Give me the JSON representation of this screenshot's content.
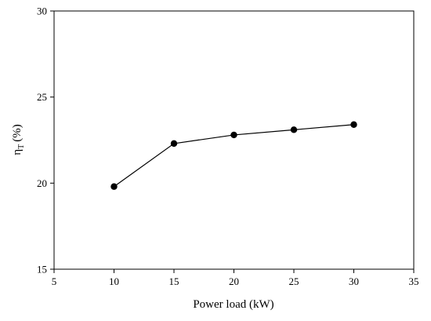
{
  "chart_data": {
    "type": "line",
    "xlabel": "Power load (kW)",
    "ylabel_main": "η",
    "ylabel_sub": "T",
    "ylabel_unit": "(%)",
    "xlim": [
      5,
      35
    ],
    "ylim": [
      15,
      30
    ],
    "xticks": [
      5,
      10,
      15,
      20,
      25,
      30,
      35
    ],
    "yticks": [
      15,
      20,
      25,
      30
    ],
    "grid": false,
    "series": [
      {
        "x": [
          10,
          15,
          20,
          25,
          30
        ],
        "y": [
          19.8,
          22.3,
          22.8,
          23.1,
          23.4
        ],
        "color": "#000000",
        "marker": "filled-circle"
      }
    ]
  }
}
